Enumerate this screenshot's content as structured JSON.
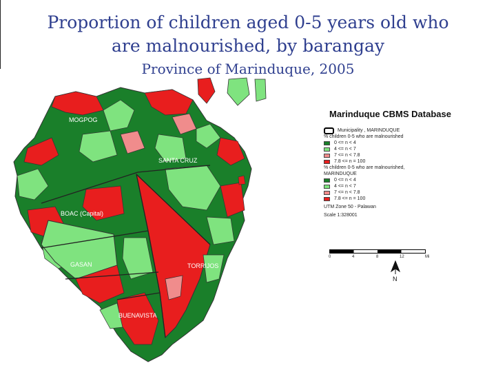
{
  "title": {
    "line1": "Proportion of children aged 0-5 years old who",
    "line2": "are malnourished,  by barangay",
    "line3": "Province of Marinduque, 2005"
  },
  "map_labels": {
    "mogpog": "MOGPOG",
    "santa_cruz": "SANTA CRUZ",
    "boac": "BOAC (Capital)",
    "gasan": "GASAN",
    "torrijos": "TORRIJOS",
    "buenavista": "BUENAVISTA"
  },
  "colors": {
    "dark_green": "#1a7f2a",
    "light_green": "#7fe37f",
    "pink": "#f08c8c",
    "red": "#e81e1e",
    "title_blue": "#2f3f8f"
  },
  "legend": {
    "title": "Marinduque CBMS Database",
    "municipality": "Municipality , MARINDUQUE",
    "section1_title": "% children 0-5 who are malnourished",
    "section1": [
      "0 <= n < 4",
      "4 <= n < 7",
      "7 <= n < 7.8",
      "7.8 <= n = 100"
    ],
    "section2_title_a": "% children 0-5 who are malnourished,",
    "section2_title_b": "MARINDUQUE",
    "section2": [
      "0 <= n < 4",
      "4 <= n < 7",
      "7 <= n < 7.8",
      "7.8 <= n = 100"
    ],
    "utm": "UTM Zone 50 - Palawan",
    "scale": "Scale 1:328001",
    "scale_ticks": [
      "0",
      "4",
      "8",
      "12",
      "Mi"
    ],
    "north": "N"
  }
}
